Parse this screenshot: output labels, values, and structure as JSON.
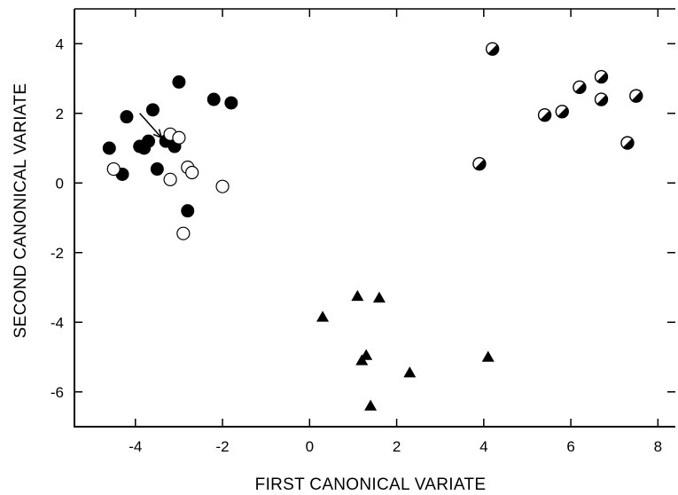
{
  "chart_data": {
    "type": "scatter",
    "title": "",
    "xlabel": "FIRST CANONICAL VARIATE",
    "ylabel": "SECOND CANONICAL VARIATE",
    "xlim": [
      -5.4,
      8.4
    ],
    "ylim": [
      -7.0,
      5.0
    ],
    "xticks": [
      -4,
      -2,
      0,
      2,
      4,
      6,
      8
    ],
    "yticks": [
      4,
      2,
      0,
      -2,
      -4,
      -6
    ],
    "xtick_labels": [
      "-4",
      "-2",
      "0",
      "2",
      "4",
      "6",
      "8"
    ],
    "ytick_labels": [
      "4",
      "2",
      "0",
      "-2",
      "-4",
      "-6"
    ],
    "grid": false,
    "legend": null,
    "series": [
      {
        "marker": "filled-circle",
        "x": [
          -3.0,
          -2.2,
          -1.8,
          -4.2,
          -3.6,
          -3.7,
          -3.9,
          -3.8,
          -3.3,
          -3.1,
          -4.6,
          -3.5,
          -4.3,
          -2.8
        ],
        "y": [
          2.9,
          2.4,
          2.3,
          1.9,
          2.1,
          1.2,
          1.05,
          1.0,
          1.2,
          1.05,
          1.0,
          0.4,
          0.25,
          -0.8
        ]
      },
      {
        "marker": "open-circle",
        "x": [
          -3.2,
          -3.0,
          -4.5,
          -2.8,
          -2.7,
          -3.2,
          -2.0,
          -2.9
        ],
        "y": [
          1.4,
          1.3,
          0.4,
          0.45,
          0.3,
          0.1,
          -0.1,
          -1.45
        ]
      },
      {
        "marker": "half-filled-circle",
        "x": [
          4.2,
          5.4,
          5.8,
          6.2,
          6.7,
          6.7,
          7.5,
          7.3,
          3.9
        ],
        "y": [
          3.85,
          1.95,
          2.05,
          2.75,
          3.05,
          2.4,
          2.5,
          1.15,
          0.55
        ]
      },
      {
        "marker": "filled-triangle",
        "x": [
          0.3,
          1.1,
          1.6,
          1.2,
          1.3,
          1.4,
          2.3,
          4.1
        ],
        "y": [
          -3.85,
          -3.25,
          -3.3,
          -5.1,
          -4.95,
          -6.4,
          -5.45,
          -5.0
        ]
      }
    ],
    "annotations": [
      {
        "type": "arrow",
        "from": [
          -3.9,
          2.0
        ],
        "to": [
          -3.4,
          1.3
        ]
      }
    ]
  }
}
